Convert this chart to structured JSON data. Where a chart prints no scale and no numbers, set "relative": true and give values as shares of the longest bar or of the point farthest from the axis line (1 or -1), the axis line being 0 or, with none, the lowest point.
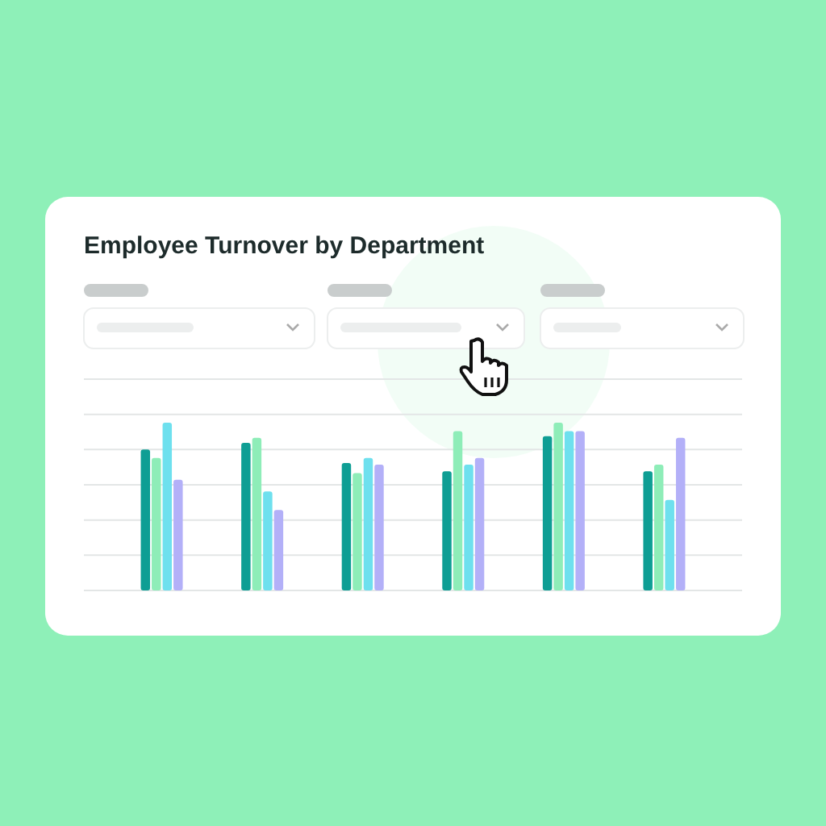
{
  "chart_data": {
    "type": "bar",
    "title": "Employee Turnover by Department",
    "relative": true,
    "grid": true,
    "categories": [
      null,
      null,
      null,
      null,
      null,
      null
    ],
    "series": [
      {
        "color": "#0e9e94",
        "values": [
          0.84,
          0.88,
          0.76,
          0.71,
          0.92,
          0.71
        ]
      },
      {
        "color": "#8eedb8",
        "values": [
          0.79,
          0.91,
          0.7,
          0.95,
          1,
          0.75
        ]
      },
      {
        "color": "#6ee0ee",
        "values": [
          1,
          0.59,
          0.79,
          0.75,
          0.95,
          0.54
        ]
      },
      {
        "color": "#b3b0f8",
        "values": [
          0.66,
          0.48,
          0.75,
          0.79,
          0.95,
          0.91
        ]
      }
    ]
  }
}
